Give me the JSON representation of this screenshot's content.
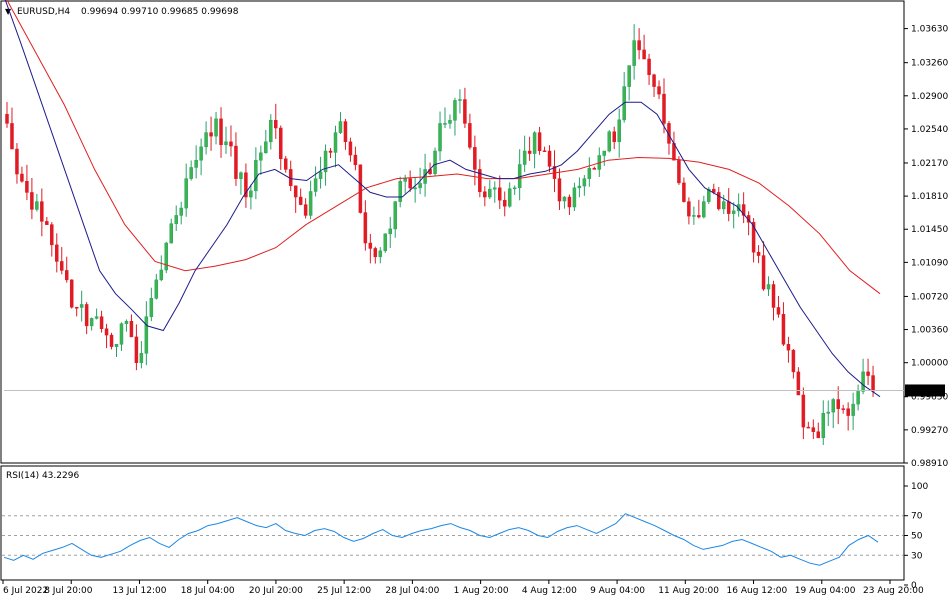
{
  "header": {
    "symbol_label": "EURUSD,H4",
    "ohlc": "0.99694 0.99710 0.99685 0.99698"
  },
  "colors": {
    "bull_candle": "#26a269",
    "bull_fill": "#3cb44b",
    "bear_candle": "#e01b24",
    "ma_fast": "#1c1c8c",
    "ma_slow": "#e02020",
    "rsi_line": "#1e88e5",
    "price_tag_bg": "#000000",
    "price_tag_text": "#ffffff",
    "grid_dash": "#a0a0a0"
  },
  "chart_data": [
    {
      "type": "candlestick",
      "title": "EURUSD,H4",
      "price_axis_ticks": [
        "1.03630",
        "1.03260",
        "1.02900",
        "1.02540",
        "1.02170",
        "1.01810",
        "1.01450",
        "1.01090",
        "1.00720",
        "1.00360",
        "1.00000",
        "0.99630",
        "0.99270",
        "0.98910"
      ],
      "ylim": [
        0.9891,
        1.0393
      ],
      "x_tick_labels": [
        "6 Jul 2022",
        "8 Jul 20:00",
        "13 Jul 12:00",
        "18 Jul 04:00",
        "20 Jul 20:00",
        "25 Jul 12:00",
        "28 Jul 04:00",
        "1 Aug 20:00",
        "4 Aug 12:00",
        "9 Aug 04:00",
        "11 Aug 20:00",
        "16 Aug 12:00",
        "19 Aug 04:00",
        "23 Aug 20:00"
      ],
      "current_price": "0.99698",
      "close_path": [
        1.026,
        1.0205,
        1.0185,
        1.0175,
        1.015,
        1.011,
        1.009,
        1.006,
        1.004,
        1.005,
        1.003,
        1.002,
        1.0045,
        1.0,
        1.005,
        1.009,
        1.013,
        1.016,
        1.02,
        1.022,
        1.025,
        1.0265,
        1.024,
        1.02,
        1.018,
        1.022,
        1.024,
        1.0255,
        1.021,
        1.018,
        1.016,
        1.02,
        1.023,
        1.025,
        1.024,
        1.0215,
        1.013,
        1.0115,
        1.014,
        1.0175,
        1.02,
        1.019,
        1.021,
        1.023,
        1.026,
        1.0285,
        1.026,
        1.021,
        1.018,
        1.019,
        1.017,
        1.019,
        1.023,
        1.025,
        1.023,
        1.02,
        1.018,
        1.019,
        1.02,
        1.021,
        1.023,
        1.024,
        1.03,
        1.035,
        1.033,
        1.03,
        1.026,
        1.022,
        1.0175,
        1.016,
        1.0175,
        1.0185,
        1.0175,
        1.0165,
        1.016,
        1.012,
        1.008,
        1.006,
        1.002,
        0.999,
        0.993,
        0.9925,
        0.9945,
        0.996,
        0.995,
        0.9955,
        0.999,
        0.9969
      ],
      "ma_fast_path": [
        1.0398,
        1.035,
        1.03,
        1.025,
        1.02,
        1.015,
        1.01,
        1.0075,
        1.0058,
        1.004,
        1.0035,
        1.0065,
        1.01,
        1.0125,
        1.015,
        1.018,
        1.0205,
        1.021,
        1.02,
        1.0198,
        1.021,
        1.0215,
        1.02,
        1.0185,
        1.018,
        1.018,
        1.0195,
        1.0215,
        1.022,
        1.021,
        1.0205,
        1.02,
        1.02,
        1.0205,
        1.0208,
        1.0215,
        1.023,
        1.025,
        1.027,
        1.0283,
        1.0283,
        1.027,
        1.024,
        1.021,
        1.019,
        1.018,
        1.017,
        1.015,
        1.012,
        1.009,
        1.006,
        1.0035,
        1.001,
        0.999,
        0.9975,
        0.9963
      ],
      "ma_slow_path": [
        1.04,
        1.034,
        1.028,
        1.021,
        1.015,
        1.011,
        1.01,
        1.0105,
        1.0112,
        1.0125,
        1.015,
        1.017,
        1.019,
        1.02,
        1.0202,
        1.0205,
        1.02,
        1.02,
        1.0205,
        1.021,
        1.022,
        1.0223,
        1.0222,
        1.0218,
        1.021,
        1.0195,
        1.017,
        1.014,
        1.01,
        1.0075
      ],
      "series": [
        {
          "name": "",
          "values": []
        }
      ]
    },
    {
      "type": "line",
      "title": "RSI(14) 43.2296",
      "ylim": [
        0,
        100
      ],
      "y_ticks": [
        "100",
        "70",
        "50",
        "30",
        "0"
      ],
      "reference_levels": [
        70,
        50,
        30
      ],
      "series": [
        {
          "name": "RSI(14)",
          "values": [
            28,
            25,
            30,
            26,
            32,
            35,
            38,
            42,
            36,
            30,
            28,
            31,
            34,
            40,
            45,
            48,
            42,
            38,
            46,
            52,
            55,
            60,
            62,
            65,
            68,
            64,
            60,
            58,
            62,
            55,
            52,
            50,
            55,
            57,
            54,
            48,
            44,
            47,
            52,
            56,
            50,
            48,
            52,
            55,
            57,
            60,
            62,
            58,
            55,
            50,
            48,
            52,
            56,
            58,
            55,
            50,
            48,
            54,
            58,
            60,
            56,
            52,
            57,
            62,
            72,
            68,
            64,
            60,
            55,
            50,
            46,
            40,
            36,
            38,
            40,
            44,
            46,
            42,
            38,
            34,
            28,
            30,
            26,
            22,
            20,
            24,
            28,
            40,
            46,
            50,
            43.2296
          ]
        }
      ]
    }
  ]
}
